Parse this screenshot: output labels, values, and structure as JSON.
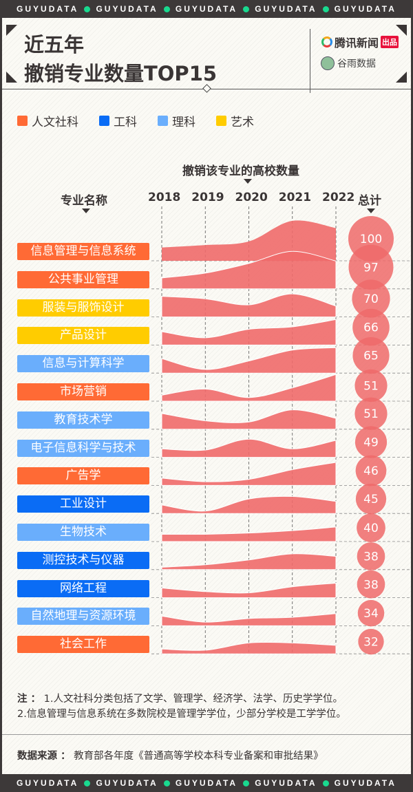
{
  "banner": {
    "text": "GUYUDATA",
    "dot_color": "#19d98f"
  },
  "header": {
    "title_line1": "近五年",
    "title_line2": "撤销专业数量TOP15",
    "publisher": "腾讯新闻",
    "publisher_badge": "出品",
    "partner": "谷雨数据"
  },
  "legend": [
    {
      "label": "人文社科",
      "color": "#ff6a35"
    },
    {
      "label": "工科",
      "color": "#0a6cf5"
    },
    {
      "label": "理科",
      "color": "#6aaefc"
    },
    {
      "label": "艺术",
      "color": "#ffcc00"
    }
  ],
  "chart_data": {
    "type": "area",
    "title": "撤销该专业的高校数量",
    "row_header": "专业名称",
    "total_header": "总计",
    "x": [
      "2018",
      "2019",
      "2020",
      "2021",
      "2022"
    ],
    "fill_color": "#ef6a6a",
    "rows": [
      {
        "name": "信息管理与信息系统",
        "category": "人文社科",
        "values": [
          11,
          13,
          16,
          33,
          27
        ],
        "total": "100"
      },
      {
        "name": "公共事业管理",
        "category": "人文社科",
        "values": [
          9,
          13,
          21,
          31,
          23
        ],
        "total": "97"
      },
      {
        "name": "服装与服饰设计",
        "category": "艺术",
        "values": [
          17,
          15,
          10,
          19,
          9
        ],
        "total": "70"
      },
      {
        "name": "产品设计",
        "category": "艺术",
        "values": [
          11,
          6,
          13,
          15,
          21
        ],
        "total": "66"
      },
      {
        "name": "信息与计算科学",
        "category": "理科",
        "values": [
          12,
          3,
          10,
          19,
          21
        ],
        "total": "65"
      },
      {
        "name": "市场营销",
        "category": "人文社科",
        "values": [
          5,
          10,
          3,
          11,
          22
        ],
        "total": "51"
      },
      {
        "name": "教育技术学",
        "category": "理科",
        "values": [
          13,
          7,
          6,
          16,
          9
        ],
        "total": "51"
      },
      {
        "name": "电子信息科学与技术",
        "category": "理科",
        "values": [
          7,
          6,
          15,
          7,
          14
        ],
        "total": "49"
      },
      {
        "name": "广告学",
        "category": "人文社科",
        "values": [
          6,
          3,
          5,
          13,
          19
        ],
        "total": "46"
      },
      {
        "name": "工业设计",
        "category": "工科",
        "values": [
          7,
          2,
          12,
          14,
          10
        ],
        "total": "45"
      },
      {
        "name": "生物技术",
        "category": "理科",
        "values": [
          6,
          6,
          7,
          9,
          12
        ],
        "total": "40"
      },
      {
        "name": "测控技术与仪器",
        "category": "工科",
        "values": [
          2,
          4,
          8,
          13,
          11
        ],
        "total": "38"
      },
      {
        "name": "网络工程",
        "category": "工科",
        "values": [
          8,
          5,
          4,
          9,
          12
        ],
        "total": "38"
      },
      {
        "name": "自然地理与资源环境",
        "category": "理科",
        "values": [
          8,
          3,
          6,
          7,
          10
        ],
        "total": "34"
      },
      {
        "name": "社会工作",
        "category": "人文社科",
        "values": [
          4,
          3,
          9,
          9,
          7
        ],
        "total": "32"
      }
    ]
  },
  "notes": {
    "prefix": "注 ：",
    "line1": "1.人文社科分类包括了文学、管理学、经济学、法学、历史学学位。",
    "line2": "2.信息管理与信息系统在多数院校是管理学学位，少部分学校是工学学位。"
  },
  "source": {
    "label": "数据来源 ：",
    "text": "教育部各年度《普通高等学校本科专业备案和审批结果》"
  }
}
